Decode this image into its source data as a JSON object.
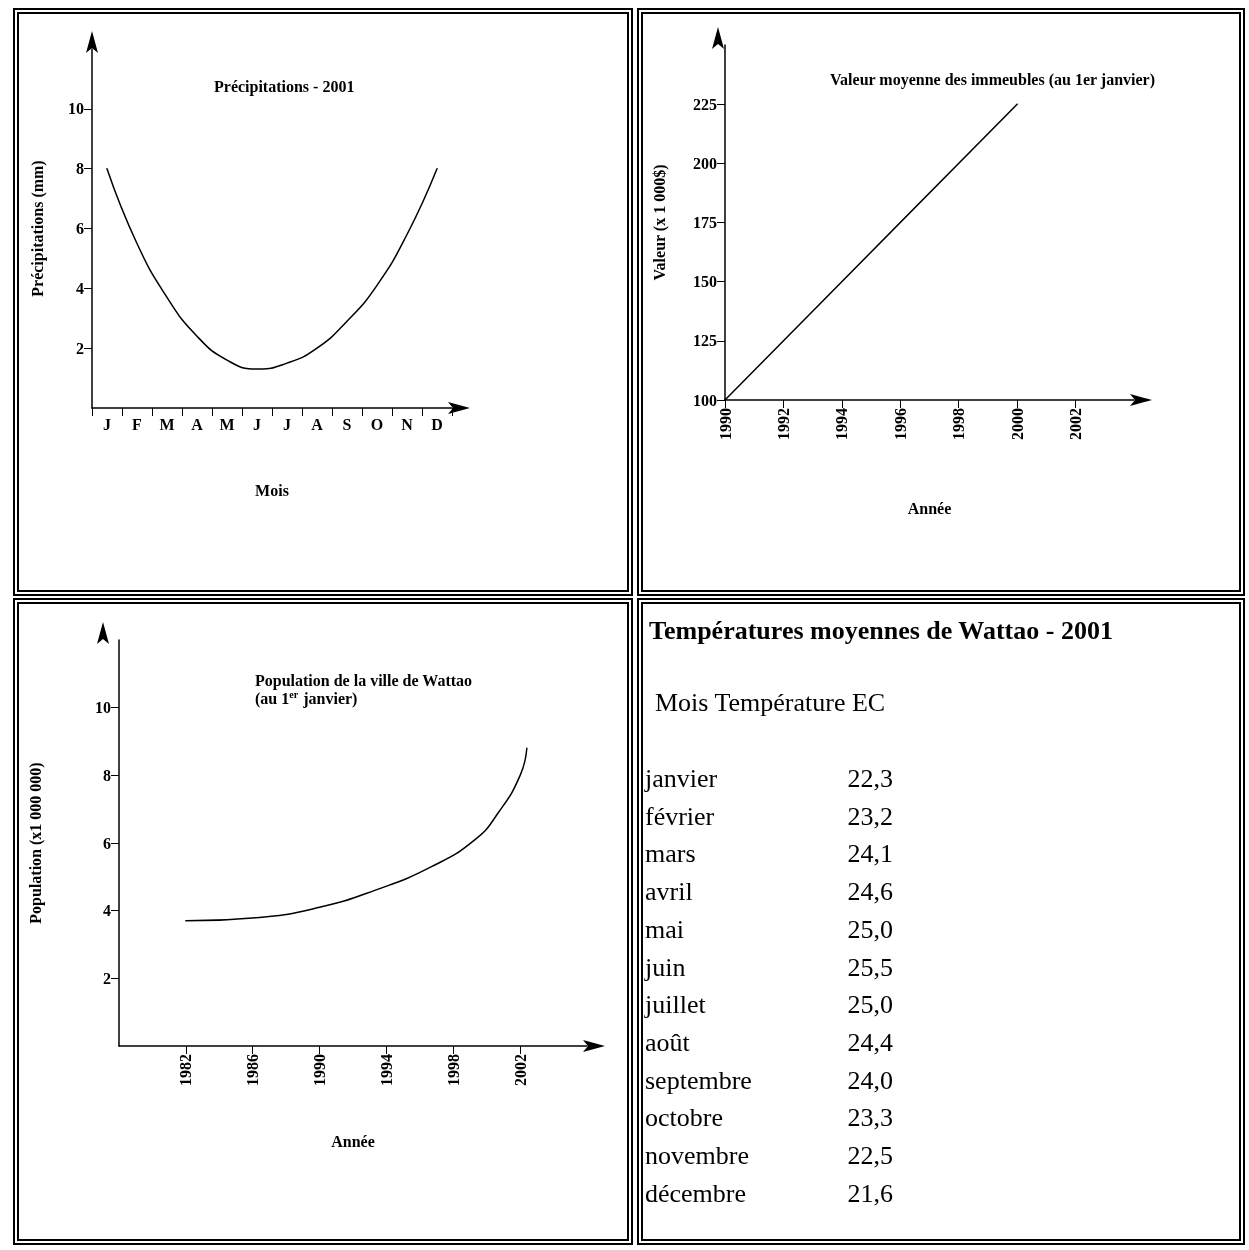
{
  "chart_data": [
    {
      "type": "line",
      "title": "Précipitations - 2001",
      "xlabel": "Mois",
      "ylabel": "Précipitations (mm)",
      "marker": "none",
      "categories": [
        "J",
        "F",
        "M",
        "A",
        "M",
        "J",
        "J",
        "A",
        "S",
        "O",
        "N",
        "D"
      ],
      "series": [
        {
          "color": "#000000",
          "values": [
            8,
            5.5,
            3.7,
            2.4,
            1.6,
            1.3,
            1.5,
            2,
            2.9,
            4.1,
            5.8,
            8
          ]
        }
      ],
      "ylim": [
        0,
        12
      ],
      "yticks": [
        2,
        4,
        6,
        8,
        10
      ]
    },
    {
      "type": "line",
      "title": "Valeur moyenne des immeubles (au 1er janvier)",
      "xlabel": "Année",
      "ylabel": "Valeur (x 1 000$)",
      "marker": "none",
      "x": [
        1990,
        2000
      ],
      "series": [
        {
          "color": "#000000",
          "values": [
            100,
            225
          ]
        }
      ],
      "xlim": [
        1990,
        2004
      ],
      "ylim": [
        100,
        250
      ],
      "xticks": [
        1990,
        1992,
        1994,
        1996,
        1998,
        2000,
        2002
      ],
      "yticks": [
        100,
        125,
        150,
        175,
        200,
        225
      ]
    },
    {
      "type": "line",
      "title": "Population de la ville de Wattao (au 1$^{er}$ janvier)",
      "xlabel": "Année",
      "ylabel": "Population (x1 000 000)",
      "marker": "none",
      "x": [
        1982,
        1986.4,
        1990,
        1993.3,
        1996.7,
        1999.3,
        2000.7,
        2002,
        2002.4
      ],
      "series": [
        {
          "color": "#000000",
          "values": [
            3.7,
            3.8,
            4.1,
            4.6,
            5.3,
            6.1,
            6.9,
            8,
            8.8
          ]
        }
      ],
      "xlim": [
        1978,
        2006
      ],
      "ylim": [
        0,
        12
      ],
      "xticks": [
        1982,
        1986,
        1990,
        1994,
        1998,
        2002
      ],
      "yticks": [
        2,
        4,
        6,
        8,
        10
      ]
    },
    {
      "type": "other",
      "title": "Températures moyennes de Wattao - 2001",
      "subtitle": "Mois Température EC",
      "annotations": [
        "janvier 22,3",
        "février 23,2",
        "mars 24,1",
        "avril 24,6",
        "mai 25,0",
        "juin 25,5",
        "juillet 25,0",
        "août 24,4",
        "septembre 24,0",
        "octobre 23,3",
        "novembre 22,5",
        "décembre 21,6"
      ]
    }
  ]
}
